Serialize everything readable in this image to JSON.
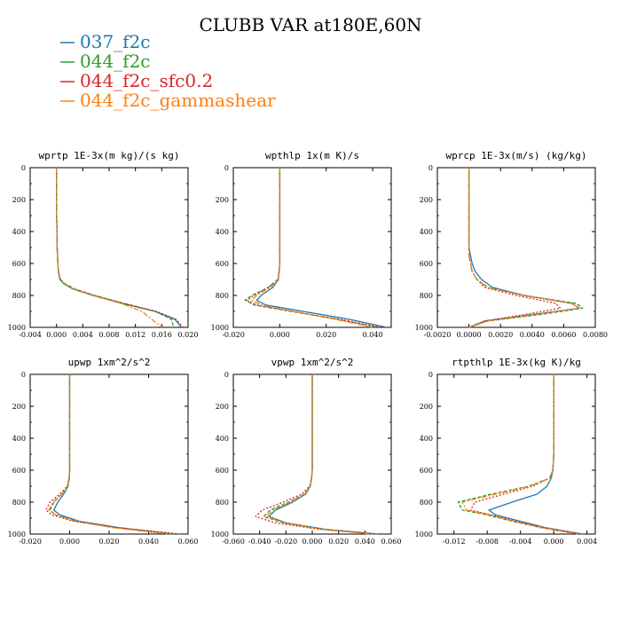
{
  "figure": {
    "title": "CLUBB VAR at180E,60N"
  },
  "legend": [
    {
      "name": "037_f2c",
      "color": "#1f77b4",
      "dash": ""
    },
    {
      "name": "044_f2c",
      "color": "#2ca02c",
      "dash": "4,2"
    },
    {
      "name": "044_f2c_sfc0.2",
      "color": "#d62728",
      "dash": "2,2"
    },
    {
      "name": "044_f2c_gammashear",
      "color": "#ff7f0e",
      "dash": "6,2,2,2"
    }
  ],
  "chart_data": [
    {
      "type": "line",
      "title": "wprtp  1E-3x(m kg)/(s kg)",
      "xlim": [
        -0.004,
        0.02
      ],
      "ylim": [
        0,
        1000
      ],
      "y_inverted": true,
      "xticks": [
        -0.004,
        0.0,
        0.004,
        0.008,
        0.012,
        0.016,
        0.02
      ],
      "xtick_labels": [
        "-0.004",
        "0.000",
        "0.004",
        "0.008",
        "0.012",
        "0.016",
        "0.020"
      ],
      "yticks": [
        0,
        200,
        400,
        600,
        800,
        1000
      ],
      "y": [
        0,
        100,
        200,
        300,
        400,
        500,
        600,
        650,
        700,
        730,
        760,
        800,
        850,
        900,
        950,
        1000
      ],
      "series": [
        {
          "name": "037_f2c",
          "values": [
            0.0,
            0.0,
            0.0,
            0.0,
            0.0001,
            0.0001,
            0.0002,
            0.0003,
            0.0005,
            0.0012,
            0.0025,
            0.0055,
            0.01,
            0.015,
            0.018,
            0.019
          ]
        },
        {
          "name": "044_f2c",
          "values": [
            0.0,
            0.0,
            0.0,
            0.0,
            0.0001,
            0.0001,
            0.0002,
            0.0003,
            0.0006,
            0.0014,
            0.0028,
            0.0058,
            0.0103,
            0.015,
            0.0175,
            0.0178
          ]
        },
        {
          "name": "044_f2c_sfc0.2",
          "values": [
            0.0,
            0.0,
            0.0,
            0.0,
            0.0001,
            0.0001,
            0.0002,
            0.0003,
            0.0006,
            0.0013,
            0.0027,
            0.0057,
            0.0102,
            0.0152,
            0.0182,
            0.0192
          ]
        },
        {
          "name": "044_f2c_gammashear",
          "values": [
            0.0,
            0.0,
            0.0,
            0.0,
            0.0001,
            0.0001,
            0.0002,
            0.0003,
            0.0006,
            0.0013,
            0.0026,
            0.0055,
            0.0098,
            0.013,
            0.0145,
            0.016
          ]
        }
      ]
    },
    {
      "type": "line",
      "title": "wpthlp  1x(m K)/s",
      "xlim": [
        -0.02,
        0.048
      ],
      "ylim": [
        0,
        1000
      ],
      "y_inverted": true,
      "xticks": [
        -0.02,
        0.0,
        0.02,
        0.04
      ],
      "xtick_labels": [
        "-0.020",
        "0.000",
        "0.020",
        "0.040"
      ],
      "yticks": [
        0,
        200,
        400,
        600,
        800,
        1000
      ],
      "y": [
        0,
        100,
        200,
        300,
        400,
        500,
        600,
        650,
        700,
        750,
        800,
        830,
        860,
        900,
        950,
        1000
      ],
      "series": [
        {
          "name": "037_f2c",
          "values": [
            0.0,
            0.0,
            0.0,
            0.0,
            0.0,
            0.0,
            0.0,
            -0.0003,
            -0.0006,
            -0.003,
            -0.008,
            -0.01,
            -0.006,
            0.01,
            0.03,
            0.046
          ]
        },
        {
          "name": "044_f2c",
          "values": [
            0.0,
            0.0,
            0.0,
            0.0,
            0.0,
            0.0,
            0.0,
            -0.0003,
            -0.0008,
            -0.005,
            -0.012,
            -0.015,
            -0.011,
            0.005,
            0.025,
            0.042
          ]
        },
        {
          "name": "044_f2c_sfc0.2",
          "values": [
            0.0,
            0.0,
            0.0,
            0.0,
            0.0,
            0.0,
            0.0,
            -0.0003,
            -0.0008,
            -0.005,
            -0.011,
            -0.014,
            -0.01,
            0.005,
            0.026,
            0.044
          ]
        },
        {
          "name": "044_f2c_gammashear",
          "values": [
            0.0,
            0.0,
            0.0,
            0.0,
            0.0,
            0.0,
            0.0,
            -0.0003,
            -0.0007,
            -0.004,
            -0.01,
            -0.012,
            -0.008,
            0.006,
            0.024,
            0.04
          ]
        }
      ]
    },
    {
      "type": "line",
      "title": "wprcp  1E-3x(m/s) (kg/kg)",
      "xlim": [
        -0.002,
        0.008
      ],
      "ylim": [
        0,
        1000
      ],
      "y_inverted": true,
      "xticks": [
        -0.002,
        0.0,
        0.002,
        0.004,
        0.006,
        0.008
      ],
      "xtick_labels": [
        "-0.0020",
        "0.0000",
        "0.0020",
        "0.0040",
        "0.0060",
        "0.0080"
      ],
      "yticks": [
        0,
        200,
        400,
        600,
        800,
        1000
      ],
      "y": [
        0,
        100,
        200,
        300,
        400,
        500,
        550,
        600,
        650,
        700,
        750,
        800,
        850,
        880,
        920,
        960,
        1000
      ],
      "series": [
        {
          "name": "037_f2c",
          "values": [
            0.0,
            0.0,
            0.0,
            0.0,
            0.0,
            0.0,
            0.0001,
            0.0002,
            0.0004,
            0.0008,
            0.0015,
            0.0035,
            0.0065,
            0.007,
            0.004,
            0.001,
            0.0
          ]
        },
        {
          "name": "044_f2c",
          "values": [
            0.0,
            0.0,
            0.0,
            0.0,
            0.0,
            0.0,
            0.0,
            0.0001,
            0.0002,
            0.0005,
            0.0012,
            0.0035,
            0.0068,
            0.0072,
            0.0045,
            0.0012,
            0.0
          ]
        },
        {
          "name": "044_f2c_sfc0.2",
          "values": [
            0.0,
            0.0,
            0.0,
            0.0,
            0.0,
            0.0,
            0.0,
            0.0001,
            0.0002,
            0.0005,
            0.001,
            0.003,
            0.0055,
            0.0058,
            0.0035,
            0.001,
            0.0
          ]
        },
        {
          "name": "044_f2c_gammashear",
          "values": [
            0.0,
            0.0,
            0.0,
            0.0,
            0.0,
            0.0,
            0.0,
            0.0001,
            0.0002,
            0.0005,
            0.0012,
            0.0034,
            0.0065,
            0.007,
            0.0042,
            0.0012,
            0.0
          ]
        }
      ]
    },
    {
      "type": "line",
      "title": "upwp  1xm^2/s^2",
      "xlim": [
        -0.02,
        0.06
      ],
      "ylim": [
        0,
        1000
      ],
      "y_inverted": true,
      "xticks": [
        -0.02,
        0.0,
        0.02,
        0.04,
        0.06
      ],
      "xtick_labels": [
        "-0.020",
        "0.000",
        "0.020",
        "0.040",
        "0.060"
      ],
      "yticks": [
        0,
        200,
        400,
        600,
        800,
        1000
      ],
      "y": [
        0,
        100,
        200,
        300,
        400,
        500,
        600,
        650,
        700,
        750,
        800,
        850,
        880,
        920,
        960,
        1000
      ],
      "series": [
        {
          "name": "037_f2c",
          "values": [
            0.0,
            0.0,
            0.0,
            0.0,
            0.0,
            0.0,
            0.0,
            -0.0002,
            -0.0008,
            -0.003,
            -0.006,
            -0.008,
            -0.005,
            0.005,
            0.025,
            0.052
          ]
        },
        {
          "name": "044_f2c",
          "values": [
            0.0,
            0.0,
            0.0,
            0.0,
            0.0,
            0.0,
            0.0,
            -0.0002,
            -0.001,
            -0.004,
            -0.008,
            -0.01,
            -0.007,
            0.003,
            0.023,
            0.054
          ]
        },
        {
          "name": "044_f2c_sfc0.2",
          "values": [
            0.0,
            0.0,
            0.0,
            0.0,
            0.0,
            0.0,
            0.0,
            -0.0003,
            -0.0012,
            -0.005,
            -0.01,
            -0.012,
            -0.009,
            0.002,
            0.025,
            0.056
          ]
        },
        {
          "name": "044_f2c_gammashear",
          "values": [
            0.0,
            0.0,
            0.0,
            0.0,
            0.0,
            0.0,
            0.0,
            -0.0002,
            -0.001,
            -0.004,
            -0.0085,
            -0.0105,
            -0.007,
            0.003,
            0.022,
            0.05
          ]
        }
      ]
    },
    {
      "type": "line",
      "title": "vpwp  1xm^2/s^2",
      "xlim": [
        -0.06,
        0.06
      ],
      "ylim": [
        0,
        1000
      ],
      "y_inverted": true,
      "xticks": [
        -0.06,
        -0.04,
        -0.02,
        0.0,
        0.02,
        0.04,
        0.06
      ],
      "xtick_labels": [
        "-0.060",
        "-0.040",
        "-0.020",
        "0.000",
        "0.020",
        "0.040",
        "0.060"
      ],
      "yticks": [
        0,
        200,
        400,
        600,
        800,
        1000
      ],
      "y": [
        0,
        100,
        200,
        300,
        400,
        500,
        600,
        650,
        700,
        750,
        800,
        850,
        890,
        930,
        970,
        1000
      ],
      "series": [
        {
          "name": "037_f2c",
          "values": [
            0.0,
            0.0,
            0.0,
            0.0,
            0.0,
            0.0,
            0.0,
            -0.0005,
            -0.0015,
            -0.005,
            -0.015,
            -0.028,
            -0.033,
            -0.02,
            0.01,
            0.05
          ]
        },
        {
          "name": "044_f2c",
          "values": [
            0.0,
            0.0,
            0.0,
            0.0,
            0.0,
            0.0,
            0.0,
            -0.0005,
            -0.0015,
            -0.006,
            -0.018,
            -0.032,
            -0.037,
            -0.022,
            0.008,
            0.048
          ]
        },
        {
          "name": "044_f2c_sfc0.2",
          "values": [
            0.0,
            0.0,
            0.0,
            0.0,
            0.0,
            0.0,
            0.0,
            -0.0006,
            -0.002,
            -0.008,
            -0.022,
            -0.038,
            -0.043,
            -0.028,
            0.005,
            0.05
          ]
        },
        {
          "name": "044_f2c_gammashear",
          "values": [
            0.0,
            0.0,
            0.0,
            0.0,
            0.0,
            0.0,
            0.0,
            -0.0005,
            -0.0015,
            -0.0055,
            -0.017,
            -0.03,
            -0.035,
            -0.021,
            0.007,
            0.045
          ]
        }
      ]
    },
    {
      "type": "line",
      "title": "rtpthlp  1E-3x(kg K)/kg",
      "xlim": [
        -0.014,
        0.005
      ],
      "ylim": [
        0,
        1000
      ],
      "y_inverted": true,
      "xticks": [
        -0.012,
        -0.008,
        -0.004,
        0.0,
        0.004
      ],
      "xtick_labels": [
        "-0.012",
        "-0.008",
        "-0.004",
        "0.000",
        "0.004"
      ],
      "yticks": [
        0,
        200,
        400,
        600,
        800,
        1000
      ],
      "y": [
        0,
        100,
        200,
        300,
        400,
        500,
        600,
        650,
        700,
        750,
        800,
        850,
        880,
        920,
        960,
        1000
      ],
      "series": [
        {
          "name": "037_f2c",
          "values": [
            0.0,
            0.0,
            0.0,
            0.0,
            0.0,
            0.0,
            -0.0001,
            -0.0003,
            -0.0008,
            -0.002,
            -0.005,
            -0.0078,
            -0.007,
            -0.004,
            -0.001,
            0.0035
          ]
        },
        {
          "name": "044_f2c",
          "values": [
            0.0,
            0.0,
            0.0,
            0.0,
            0.0,
            0.0,
            -0.0001,
            -0.0005,
            -0.003,
            -0.0075,
            -0.0115,
            -0.011,
            -0.008,
            -0.005,
            -0.0015,
            0.003
          ]
        },
        {
          "name": "044_f2c_sfc0.2",
          "values": [
            0.0,
            0.0,
            0.0,
            0.0,
            0.0,
            0.0,
            -0.0001,
            -0.0005,
            -0.0025,
            -0.006,
            -0.0095,
            -0.01,
            -0.0075,
            -0.0045,
            -0.0012,
            0.0032
          ]
        },
        {
          "name": "044_f2c_gammashear",
          "values": [
            0.0,
            0.0,
            0.0,
            0.0,
            0.0,
            0.0,
            -0.0001,
            -0.0005,
            -0.0028,
            -0.007,
            -0.011,
            -0.0105,
            -0.0078,
            -0.0048,
            -0.0013,
            0.003
          ]
        }
      ]
    }
  ]
}
